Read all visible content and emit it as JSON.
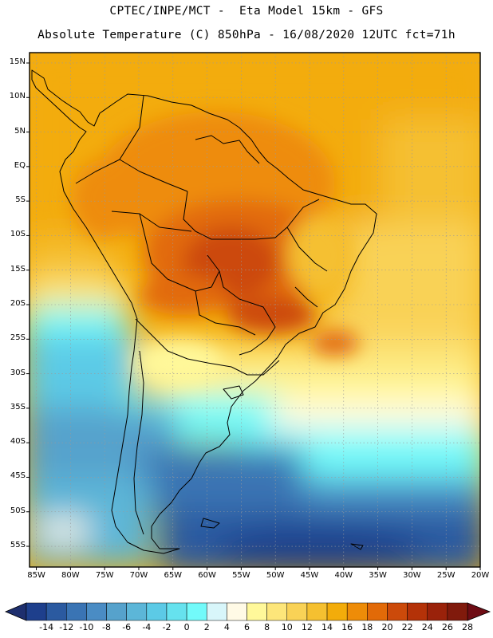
{
  "title": {
    "line1": "CPTEC/INPE/MCT -  Eta Model 15km - GFS",
    "line2": "Absolute Temperature (C) 850hPa - 16/08/2020 12UTC fct=71h"
  },
  "map": {
    "lat_labels": [
      "15N",
      "10N",
      "5N",
      "EQ",
      "5S",
      "10S",
      "15S",
      "20S",
      "25S",
      "30S",
      "35S",
      "40S",
      "45S",
      "50S",
      "55S"
    ],
    "lon_labels": [
      "85W",
      "80W",
      "75W",
      "70W",
      "65W",
      "60W",
      "55W",
      "50W",
      "45W",
      "40W",
      "35W",
      "30W",
      "25W",
      "20W"
    ],
    "lat_values": [
      15,
      10,
      5,
      0,
      -5,
      -10,
      -15,
      -20,
      -25,
      -30,
      -35,
      -40,
      -45,
      -50,
      -55
    ],
    "lon_values": [
      -85,
      -80,
      -75,
      -70,
      -65,
      -60,
      -55,
      -50,
      -45,
      -40,
      -35,
      -30,
      -25,
      -20
    ],
    "lon_range": [
      -86,
      -20
    ],
    "lat_range": [
      -58,
      16.5
    ]
  },
  "colorbar": {
    "labels": [
      "-14",
      "-12",
      "-10",
      "-8",
      "-6",
      "-4",
      "-2",
      "0",
      "2",
      "4",
      "6",
      "8",
      "10",
      "12",
      "14",
      "16",
      "18",
      "20",
      "22",
      "24",
      "26",
      "28"
    ],
    "colors": [
      "#1e3f8c",
      "#2b5aa0",
      "#3a74b4",
      "#4a8cc4",
      "#56a2cc",
      "#5cb6d8",
      "#5ccae6",
      "#66e2ee",
      "#72fafa",
      "#d8f6fa",
      "#fffae6",
      "#fff89a",
      "#fde67a",
      "#f9d256",
      "#f5c030",
      "#f3ac0a",
      "#ee8c08",
      "#e26a08",
      "#cc4a0a",
      "#b43208",
      "#9a220a",
      "#801a0c"
    ],
    "low_color": "#1e2f6e",
    "high_color": "#6e0c14"
  }
}
